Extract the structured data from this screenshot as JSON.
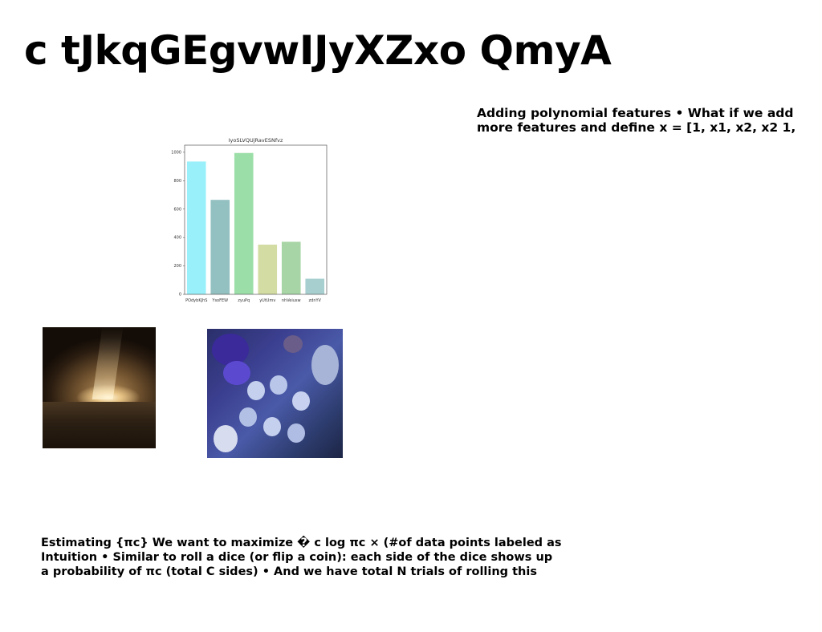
{
  "slide": {
    "title": "c tJkqGEgvwIJyXZxo QmyA",
    "side_text": {
      "lines": [
        "Adding polynomial features • What if we add",
        "more features and define x = [1, x1, x2, x2 1,"
      ]
    },
    "bottom_text": {
      "lines": [
        "Estimating {πc} We want to maximize � c log πc × (#of data points labeled as",
        "Intuition • Similar to roll a dice (or flip a coin): each side of the dice shows up",
        "a probability of πc (total C sides) • And we have total N trials of rolling this"
      ]
    }
  },
  "chart_data": {
    "type": "bar",
    "title": "IyoSLVQUjRavESNfvz",
    "categories": [
      "POdybKJhS",
      "YsoFEW",
      "zyuPq",
      "yUtUmv",
      "nhVeiusw",
      "zdnYV"
    ],
    "values": [
      935,
      665,
      995,
      350,
      370,
      110
    ],
    "colors": [
      "#9af0fa",
      "#93c0c0",
      "#9cdea8",
      "#d3dca3",
      "#a8d5a6",
      "#a8cfcf"
    ],
    "ylim": [
      0,
      1050
    ],
    "yticks": [
      0,
      200,
      400,
      600,
      800,
      1000
    ],
    "xlabel": "",
    "ylabel": "",
    "grid": false
  }
}
